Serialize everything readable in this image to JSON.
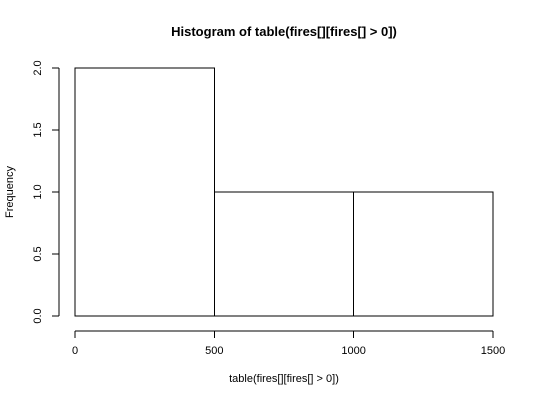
{
  "chart_data": {
    "type": "bar",
    "histogram": true,
    "title": "Histogram of table(fires[][fires[] > 0])",
    "xlabel": "table(fires[][fires[] > 0])",
    "ylabel": "Frequency",
    "bins": [
      {
        "start": 0,
        "end": 500,
        "count": 2
      },
      {
        "start": 500,
        "end": 1000,
        "count": 1
      },
      {
        "start": 1000,
        "end": 1500,
        "count": 1
      }
    ],
    "categories": [
      "0-500",
      "500-1000",
      "1000-1500"
    ],
    "values": [
      2,
      1,
      1
    ],
    "xlim": [
      0,
      1500
    ],
    "ylim": [
      0,
      2
    ],
    "x_ticks": [
      0,
      500,
      1000,
      1500
    ],
    "x_tick_labels": [
      "0",
      "500",
      "1000",
      "1500"
    ],
    "y_ticks": [
      0,
      0.5,
      1,
      1.5,
      2
    ],
    "y_tick_labels": [
      "0.0",
      "0.5",
      "1.0",
      "1.5",
      "2.0"
    ],
    "grid": false,
    "legend": false,
    "bar_fill": "#ffffff",
    "bar_stroke": "#000000"
  }
}
